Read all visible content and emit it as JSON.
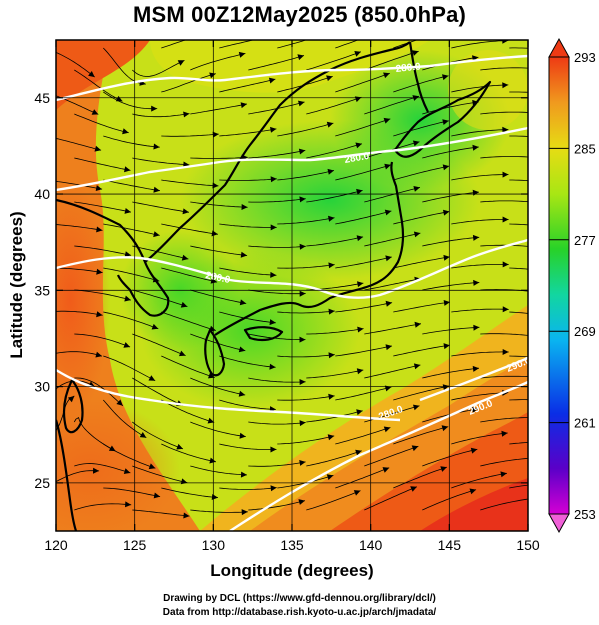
{
  "title": "MSM 00Z12May2025 (850.0hPa)",
  "axes": {
    "xlabel": "Longitude (degrees)",
    "ylabel": "Latitude  (degrees)",
    "xlim": [
      120,
      150
    ],
    "ylim": [
      22.5,
      48
    ],
    "xticks": [
      120,
      125,
      130,
      135,
      140,
      145,
      150
    ],
    "yticks": [
      25,
      30,
      35,
      40,
      45
    ],
    "grid": true
  },
  "colorbar": {
    "ticks": [
      293,
      285,
      277,
      269,
      261,
      253
    ],
    "range": [
      253,
      293
    ],
    "placement": "right",
    "colors": [
      "#d400d4",
      "#5a00c8",
      "#0a2ee6",
      "#0ab4f0",
      "#12d6a0",
      "#28d228",
      "#a8e614",
      "#e6dc14",
      "#f09a1e",
      "#ee3a14"
    ]
  },
  "contours": {
    "labels": [
      "280.0",
      "280.0",
      "280.0",
      "280.0",
      "290.0",
      "290.0"
    ],
    "color": "#ffffff"
  },
  "credits": {
    "line1": "Drawing by DCL (https://www.gfd-dennou.org/library/dcl/)",
    "line2": "Data from http://database.rish.kyoto-u.ac.jp/arch/jmadata/"
  }
}
